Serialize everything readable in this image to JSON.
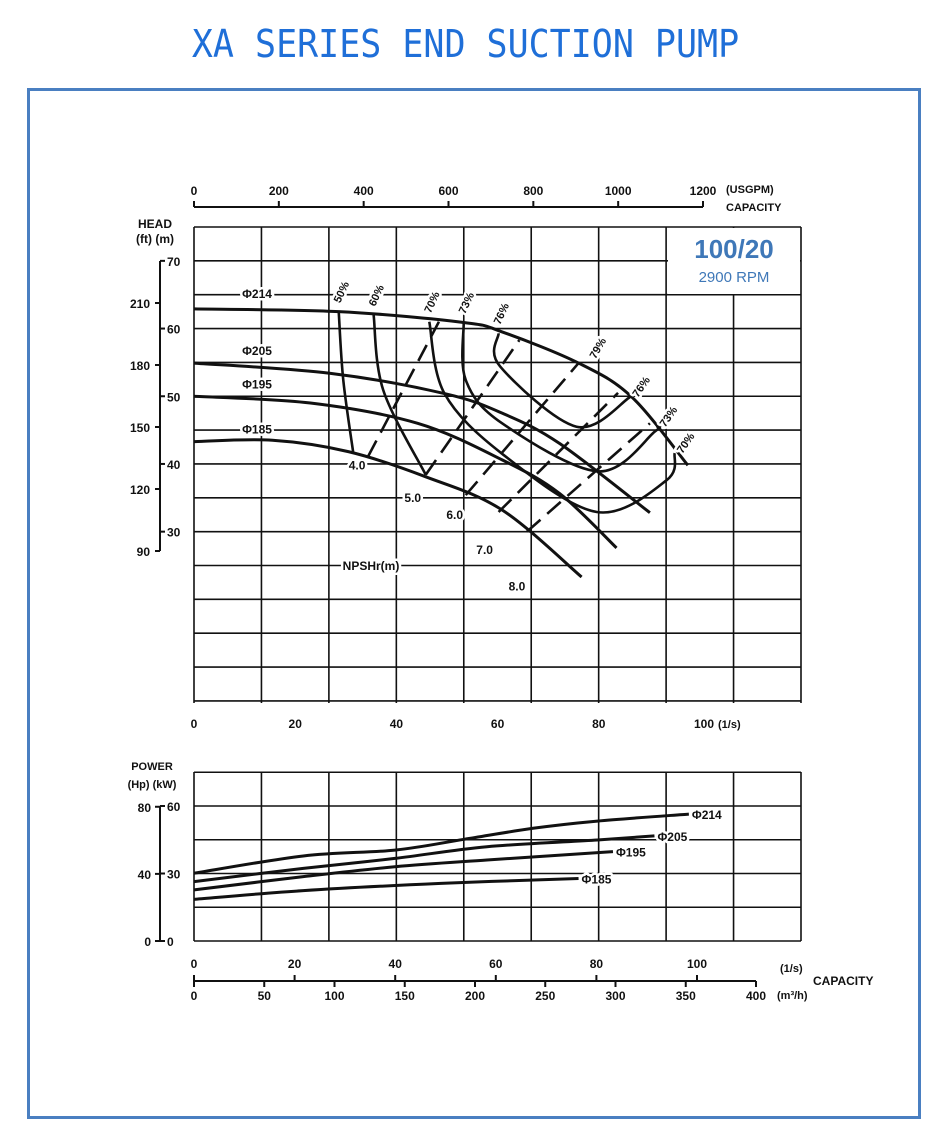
{
  "title": "XA SERIES END SUCTION PUMP",
  "model": "100/20",
  "speed": "2900 RPM",
  "colors": {
    "title": "#1f6fd8",
    "frame": "#4a7fc1",
    "model": "#3f78b8",
    "curves": "#111111"
  },
  "chart_data": [
    {
      "type": "line",
      "grid": true,
      "top_axis": {
        "ticks": [
          0,
          200,
          400,
          600,
          800,
          1000,
          1200
        ],
        "unit": "(USGPM)",
        "label": "CAPACITY"
      },
      "x_ticks": [
        0,
        20,
        40,
        60,
        80,
        100
      ],
      "x_unit": "(1/s)",
      "xlim": [
        0,
        120
      ],
      "ylabel": "HEAD",
      "ylabel_units": "(ft) (m)",
      "y_m_ticks": [
        70,
        60,
        50,
        40,
        30
      ],
      "y_ft_ticks": [
        210,
        180,
        150,
        120,
        90
      ],
      "ylim": [
        5,
        75
      ],
      "series": [
        {
          "name": "Φ214",
          "points": [
            [
              0,
              62.9
            ],
            [
              28.6,
              62.5
            ],
            [
              53.3,
              60.9
            ],
            [
              60.9,
              59.5
            ],
            [
              76,
              54.9
            ],
            [
              86.5,
              49.9
            ],
            [
              97.6,
              39.8
            ]
          ]
        },
        {
          "name": "Φ205",
          "points": [
            [
              0,
              54.9
            ],
            [
              26.8,
              53.4
            ],
            [
              49.5,
              50.4
            ],
            [
              60.9,
              47.5
            ],
            [
              72.3,
              43
            ],
            [
              90.1,
              32.8
            ]
          ]
        },
        {
          "name": "Φ195",
          "points": [
            [
              0,
              50
            ],
            [
              23,
              49
            ],
            [
              44.2,
              46
            ],
            [
              60.9,
              40.6
            ],
            [
              72.3,
              35.6
            ],
            [
              83.5,
              27.6
            ]
          ]
        },
        {
          "name": "Φ185",
          "points": [
            [
              0,
              43.3
            ],
            [
              15.5,
              43.5
            ],
            [
              30.6,
              41.8
            ],
            [
              45.8,
              38.1
            ],
            [
              60.9,
              33.2
            ],
            [
              76.6,
              23.3
            ]
          ]
        }
      ],
      "efficiency_curves": [
        {
          "label": "50%",
          "points": [
            [
              28.6,
              62.5
            ],
            [
              29.5,
              52.4
            ],
            [
              31.5,
              41.5
            ]
          ]
        },
        {
          "label": "60%",
          "points": [
            [
              35.5,
              62
            ],
            [
              37.4,
              50.9
            ],
            [
              45.8,
              38.4
            ]
          ]
        },
        {
          "label": "70%",
          "end_label": "70%",
          "points": [
            [
              46.5,
              61
            ],
            [
              49.5,
              50.4
            ],
            [
              60.9,
              41.5
            ],
            [
              79.6,
              32.9
            ],
            [
              93.4,
              37.6
            ],
            [
              95,
              41.6
            ]
          ]
        },
        {
          "label": "73%",
          "end_label": "73%",
          "points": [
            [
              53.3,
              60.9
            ],
            [
              53.7,
              52.4
            ],
            [
              60.9,
              46
            ],
            [
              79.9,
              38.9
            ],
            [
              91.1,
              44.8
            ],
            [
              91.6,
              45.5
            ]
          ]
        },
        {
          "label": "76%",
          "end_label": "76%",
          "points": [
            [
              60.2,
              59.3
            ],
            [
              60.5,
              54.4
            ],
            [
              75.6,
              45.5
            ],
            [
              86.2,
              49.9
            ]
          ]
        }
      ],
      "peak_label": "79%",
      "npsh_label": "NPSHr(m)",
      "npsh_lines": [
        {
          "label": "4.0",
          "points": [
            [
              34.4,
              41.1
            ],
            [
              48.4,
              61
            ]
          ]
        },
        {
          "label": "5.0",
          "points": [
            [
              45.8,
              38.4
            ],
            [
              64.3,
              58.3
            ]
          ]
        },
        {
          "label": "6.0",
          "points": [
            [
              53.7,
              35.4
            ],
            [
              76,
              54.9
            ]
          ]
        },
        {
          "label": "7.0",
          "points": [
            [
              60.2,
              32.9
            ],
            [
              83.8,
              50.5
            ]
          ]
        },
        {
          "label": "8.0",
          "points": [
            [
              65.8,
              30
            ],
            [
              90.1,
              46
            ]
          ]
        }
      ]
    },
    {
      "type": "line",
      "grid": true,
      "ylabel": "POWER",
      "ylabel_units": "(Hp) (kW)",
      "y_kw_ticks": [
        60,
        30,
        0
      ],
      "y_hp_ticks": [
        80,
        40,
        0
      ],
      "ylim": [
        0,
        75
      ],
      "xlim": [
        0,
        120
      ],
      "x_ticks": [
        0,
        20,
        40,
        60,
        80,
        100
      ],
      "x_unit": "(1/s)",
      "x2_ticks": [
        0,
        50,
        100,
        150,
        200,
        250,
        300,
        350,
        400
      ],
      "x2_unit": "(m³/h)",
      "xlabel": "CAPACITY",
      "series": [
        {
          "name": "Φ214",
          "points": [
            [
              0,
              30.1
            ],
            [
              21.6,
              37.8
            ],
            [
              39.7,
              40.4
            ],
            [
              53.4,
              45.2
            ],
            [
              67,
              50.1
            ],
            [
              79.7,
              53.3
            ],
            [
              97.8,
              56.4
            ]
          ]
        },
        {
          "name": "Φ205",
          "points": [
            [
              0,
              26.4
            ],
            [
              21.6,
              32.3
            ],
            [
              39.7,
              36.7
            ],
            [
              57.9,
              41.9
            ],
            [
              79.7,
              44.9
            ],
            [
              91,
              46.7
            ]
          ]
        },
        {
          "name": "Φ195",
          "points": [
            [
              0,
              22.7
            ],
            [
              21.6,
              28.6
            ],
            [
              39.7,
              33
            ],
            [
              57.9,
              36
            ],
            [
              82.8,
              39.7
            ]
          ]
        },
        {
          "name": "Φ185",
          "points": [
            [
              0,
              18.5
            ],
            [
              21.6,
              22.4
            ],
            [
              48.8,
              25.6
            ],
            [
              76,
              27.8
            ]
          ]
        }
      ]
    }
  ]
}
